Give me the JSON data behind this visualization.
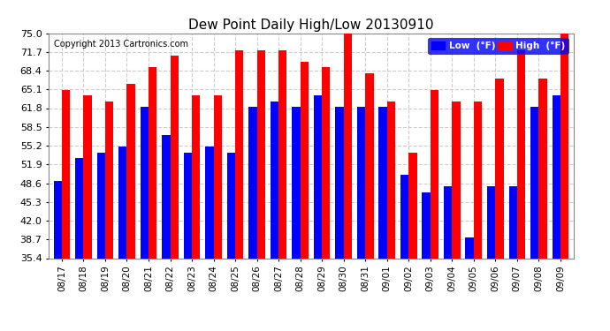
{
  "title": "Dew Point Daily High/Low 20130910",
  "copyright": "Copyright 2013 Cartronics.com",
  "dates": [
    "08/17",
    "08/18",
    "08/19",
    "08/20",
    "08/21",
    "08/22",
    "08/23",
    "08/24",
    "08/25",
    "08/26",
    "08/27",
    "08/28",
    "08/29",
    "08/30",
    "08/31",
    "09/01",
    "09/02",
    "09/03",
    "09/04",
    "09/05",
    "09/06",
    "09/07",
    "09/08",
    "09/09"
  ],
  "low": [
    49,
    53,
    54,
    55,
    62,
    57,
    54,
    55,
    54,
    62,
    63,
    62,
    64,
    62,
    62,
    62,
    50,
    47,
    48,
    39,
    48,
    48,
    62,
    64
  ],
  "high": [
    65,
    64,
    63,
    66,
    69,
    71,
    64,
    64,
    72,
    72,
    72,
    70,
    69,
    76,
    68,
    63,
    54,
    65,
    63,
    63,
    67,
    72,
    67,
    75
  ],
  "ymin": 35.4,
  "ymax": 75.0,
  "yticks": [
    35.4,
    38.7,
    42.0,
    45.3,
    48.6,
    51.9,
    55.2,
    58.5,
    61.8,
    65.1,
    68.4,
    71.7,
    75.0
  ],
  "low_color": "#0000ff",
  "high_color": "#ff0000",
  "bg_color": "#ffffff",
  "plot_bg_color": "#ffffff",
  "grid_color": "#cccccc",
  "bar_width": 0.38,
  "legend_low_label": "Low  (°F)",
  "legend_high_label": "High  (°F)"
}
